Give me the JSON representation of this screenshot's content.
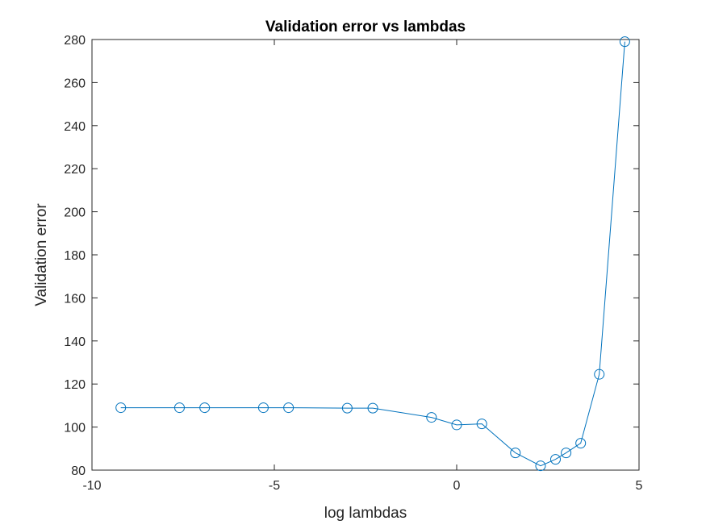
{
  "chart_data": {
    "type": "line",
    "title": "Validation error vs lambdas",
    "xlabel": "log lambdas",
    "ylabel": "Validation error",
    "xlim": [
      -10,
      5
    ],
    "ylim": [
      80,
      280
    ],
    "xticks": [
      -10,
      -5,
      0,
      5
    ],
    "yticks": [
      80,
      100,
      120,
      140,
      160,
      180,
      200,
      220,
      240,
      260,
      280
    ],
    "grid": false,
    "marker": "circle",
    "color": "#0072BD",
    "series": [
      {
        "x": [
          -9.21,
          -7.6,
          -6.91,
          -5.3,
          -4.61,
          -3.0,
          -2.3,
          -0.69,
          0.0,
          0.69,
          1.61,
          2.3,
          2.71,
          3.0,
          3.4,
          3.91,
          4.61
        ],
        "y": [
          109,
          109,
          109,
          109,
          109,
          108.8,
          108.8,
          104.5,
          101,
          101.5,
          88,
          82,
          85,
          88,
          92.5,
          124.5,
          279
        ]
      }
    ]
  }
}
